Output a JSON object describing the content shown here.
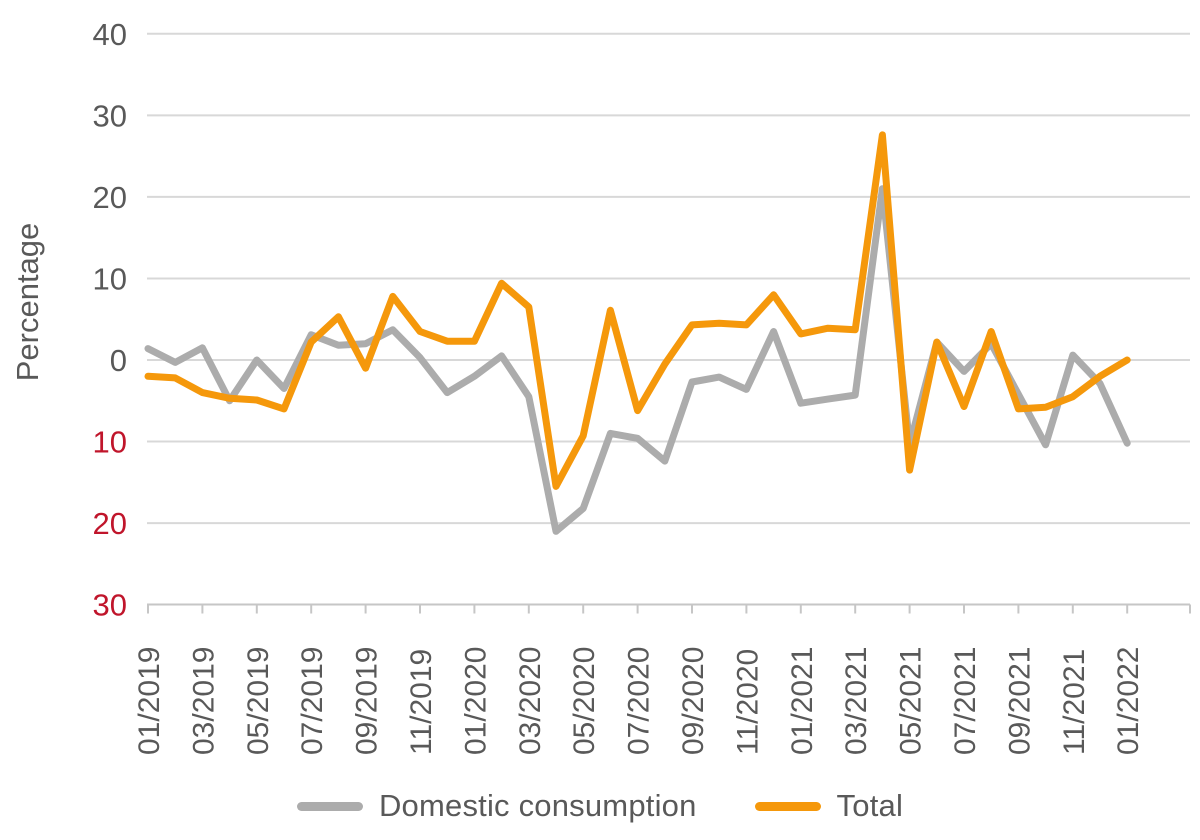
{
  "colors": {
    "series_domestic": "#ACACAC",
    "series_total": "#F5980B",
    "tick_positive": "#595959",
    "tick_negative": "#C0152B",
    "axis_title": "#595959",
    "gridline": "#D8D8D8",
    "axis_line": "#C6C6C6"
  },
  "y_axis": {
    "title": "Percentage",
    "ticks": [
      {
        "value": 40,
        "label": "40",
        "negative": false
      },
      {
        "value": 30,
        "label": "30",
        "negative": false
      },
      {
        "value": 20,
        "label": "20",
        "negative": false
      },
      {
        "value": 10,
        "label": "10",
        "negative": false
      },
      {
        "value": 0,
        "label": "0",
        "negative": false
      },
      {
        "value": -10,
        "label": "10",
        "negative": true
      },
      {
        "value": -20,
        "label": "20",
        "negative": true
      },
      {
        "value": -30,
        "label": "30",
        "negative": true
      }
    ]
  },
  "chart_data": {
    "type": "line",
    "title": "",
    "xlabel": "",
    "ylabel": "Percentage",
    "ylim": [
      -30,
      40
    ],
    "grid": true,
    "legend_position": "bottom",
    "x_label_every": 2,
    "categories": [
      "01/2019",
      "02/2019",
      "03/2019",
      "04/2019",
      "05/2019",
      "06/2019",
      "07/2019",
      "08/2019",
      "09/2019",
      "10/2019",
      "11/2019",
      "12/2019",
      "01/2020",
      "02/2020",
      "03/2020",
      "04/2020",
      "05/2020",
      "06/2020",
      "07/2020",
      "08/2020",
      "09/2020",
      "10/2020",
      "11/2020",
      "12/2020",
      "01/2021",
      "02/2021",
      "03/2021",
      "04/2021",
      "05/2021",
      "06/2021",
      "07/2021",
      "08/2021",
      "09/2021",
      "10/2021",
      "11/2021",
      "12/2021",
      "01/2022"
    ],
    "series": [
      {
        "name": "Domestic consumption",
        "color_key": "series_domestic",
        "values": [
          1.4,
          -0.3,
          1.5,
          -5.0,
          0.0,
          -3.5,
          3.1,
          1.8,
          2.0,
          3.7,
          0.3,
          -4.0,
          -2.0,
          0.5,
          -4.5,
          -21.0,
          -18.2,
          -9.0,
          -9.6,
          -12.4,
          -2.7,
          -2.1,
          -3.6,
          3.5,
          -5.3,
          -4.8,
          -4.3,
          21.0,
          -10.4,
          2.2,
          -1.4,
          2.0,
          -4.2,
          -10.4,
          0.6,
          -2.9,
          -10.2
        ]
      },
      {
        "name": "Total",
        "color_key": "series_total",
        "values": [
          -2.0,
          -2.2,
          -4.0,
          -4.7,
          -4.9,
          -6.0,
          2.2,
          5.3,
          -1.0,
          7.8,
          3.5,
          2.3,
          2.3,
          9.4,
          6.5,
          -15.5,
          -9.3,
          6.1,
          -6.2,
          -0.5,
          4.3,
          4.5,
          4.3,
          8.0,
          3.2,
          3.9,
          3.7,
          27.6,
          -13.5,
          2.2,
          -5.7,
          3.5,
          -6.0,
          -5.8,
          -4.5,
          -2.0,
          0.0
        ]
      }
    ]
  }
}
